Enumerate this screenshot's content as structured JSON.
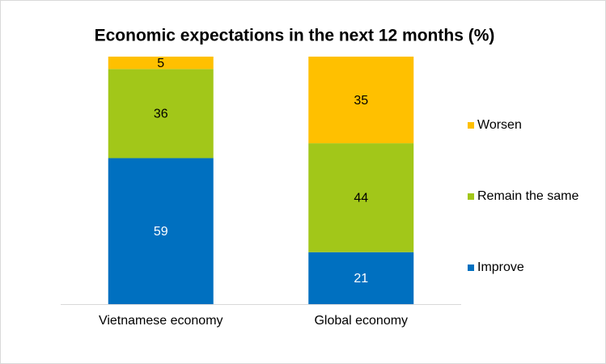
{
  "chart_data": {
    "type": "stacked_bar",
    "title": "Economic expectations in the next 12 months (%)",
    "categories": [
      "Vietnamese economy",
      "Global economy"
    ],
    "series": [
      {
        "name": "Improve",
        "color": "#0070c0",
        "values": [
          59,
          21
        ]
      },
      {
        "name": "Remain the same",
        "color": "#a2c719",
        "values": [
          36,
          44
        ]
      },
      {
        "name": "Worsen",
        "color": "#ffc000",
        "values": [
          5,
          35
        ]
      }
    ],
    "ylim": [
      0,
      100
    ],
    "legend": "right"
  }
}
